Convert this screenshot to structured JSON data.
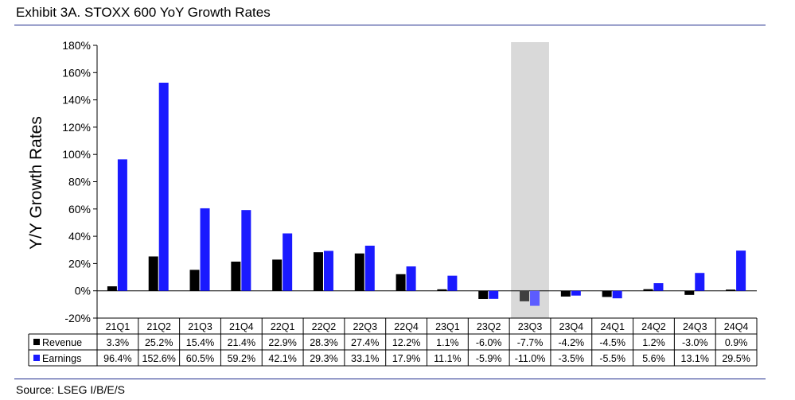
{
  "title": "Exhibit 3A.  STOXX 600 YoY Growth Rates",
  "source": "Source: LSEG I/B/E/S",
  "colors": {
    "revenue": "#000000",
    "earnings": "#1a1aff",
    "highlight": "#d9d9d9",
    "rule": "#1c2a8c",
    "highlightText": "#8c8c8c"
  },
  "chart_data": {
    "type": "bar",
    "ylabel": "Y/Y Growth Rates",
    "ylim": [
      -0.2,
      1.8
    ],
    "yticks": [
      "-20%",
      "0%",
      "20%",
      "40%",
      "60%",
      "80%",
      "100%",
      "120%",
      "140%",
      "160%",
      "180%"
    ],
    "grid": false,
    "legend": "table-below",
    "highlight_category": "23Q3",
    "categories": [
      "21Q1",
      "21Q2",
      "21Q3",
      "21Q4",
      "22Q1",
      "22Q2",
      "22Q3",
      "22Q4",
      "23Q1",
      "23Q2",
      "23Q3",
      "23Q4",
      "24Q1",
      "24Q2",
      "24Q3",
      "24Q4"
    ],
    "series": [
      {
        "name": "Revenue",
        "values": [
          0.033,
          0.252,
          0.154,
          0.214,
          0.229,
          0.283,
          0.274,
          0.122,
          0.011,
          -0.06,
          -0.077,
          -0.042,
          -0.045,
          0.012,
          -0.03,
          0.009
        ],
        "labels": [
          "3.3%",
          "25.2%",
          "15.4%",
          "21.4%",
          "22.9%",
          "28.3%",
          "27.4%",
          "12.2%",
          "1.1%",
          "-6.0%",
          "-7.7%",
          "-4.2%",
          "-4.5%",
          "1.2%",
          "-3.0%",
          "0.9%"
        ]
      },
      {
        "name": "Earnings",
        "values": [
          0.964,
          1.526,
          0.605,
          0.592,
          0.421,
          0.293,
          0.331,
          0.179,
          0.111,
          -0.059,
          -0.11,
          -0.035,
          -0.055,
          0.056,
          0.131,
          0.295
        ],
        "labels": [
          "96.4%",
          "152.6%",
          "60.5%",
          "59.2%",
          "42.1%",
          "29.3%",
          "33.1%",
          "17.9%",
          "11.1%",
          "-5.9%",
          "-11.0%",
          "-3.5%",
          "-5.5%",
          "5.6%",
          "13.1%",
          "29.5%"
        ]
      }
    ]
  }
}
